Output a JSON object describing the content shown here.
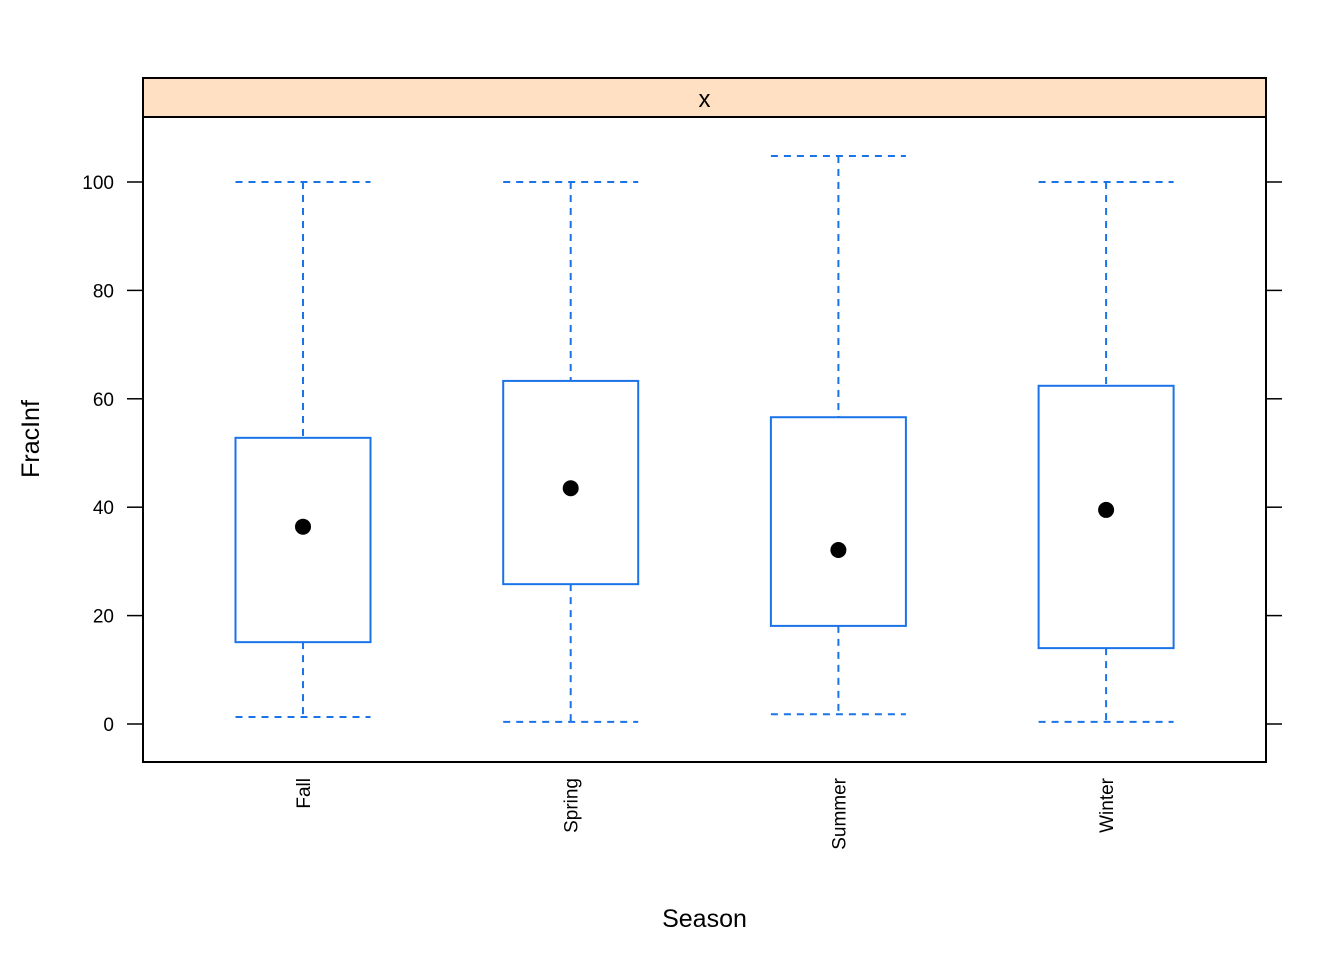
{
  "chart_data": {
    "type": "box",
    "title": "",
    "strip_label": "x",
    "xlabel": "Season",
    "ylabel": "FracInf",
    "ylim": [
      -7,
      112
    ],
    "yticks": [
      0,
      20,
      40,
      60,
      80,
      100
    ],
    "ytick_labels": [
      "0",
      "20",
      "40",
      "60",
      "80",
      "100"
    ],
    "categories": [
      "Fall",
      "Spring",
      "Summer",
      "Winter"
    ],
    "boxes": [
      {
        "category": "Fall",
        "whisker_low": 1.3,
        "q1": 15.1,
        "median": 36.4,
        "q3": 52.8,
        "whisker_high": 100.0
      },
      {
        "category": "Spring",
        "whisker_low": 0.4,
        "q1": 25.8,
        "median": 43.5,
        "q3": 63.3,
        "whisker_high": 100.0
      },
      {
        "category": "Summer",
        "whisker_low": 1.8,
        "q1": 18.1,
        "median": 32.1,
        "q3": 56.6,
        "whisker_high": 104.8
      },
      {
        "category": "Winter",
        "whisker_low": 0.4,
        "q1": 14.0,
        "median": 39.5,
        "q3": 62.4,
        "whisker_high": 100.0
      }
    ],
    "grid": false,
    "legend": "none",
    "colors": {
      "box": "#1a73e8",
      "median_dot": "#000000",
      "strip_fill": "#ffe0c2",
      "axis": "#000000"
    }
  }
}
